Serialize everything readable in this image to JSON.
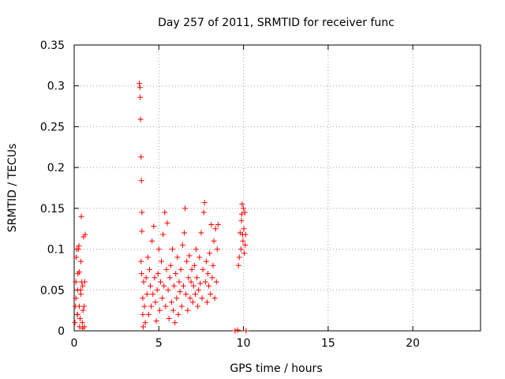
{
  "chart_data": {
    "type": "scatter",
    "title": "Day 257 of 2011, SRMTID for receiver func",
    "xlabel": "GPS time / hours",
    "ylabel": "SRMTID / TECUs",
    "xlim": [
      0,
      24
    ],
    "ylim": [
      0,
      0.35
    ],
    "xticks": [
      0,
      5,
      10,
      15,
      20
    ],
    "xtick_labels": [
      "0",
      "5",
      "10",
      "15",
      "20"
    ],
    "yticks": [
      0,
      0.05,
      0.1,
      0.15,
      0.2,
      0.25,
      0.3,
      0.35
    ],
    "ytick_labels": [
      "0",
      "0.05",
      "0.1",
      "0.15",
      "0.2",
      "0.25",
      "0.3",
      "0.35"
    ],
    "grid": true,
    "marker": "+",
    "colors": {
      "points": "#ff0000",
      "grid": "#a0a0a0",
      "axis": "#000000"
    },
    "series": [
      {
        "name": "SRMTID",
        "points": [
          [
            0.05,
            0.01
          ],
          [
            0.08,
            0.03
          ],
          [
            0.1,
            0.06
          ],
          [
            0.12,
            0.09
          ],
          [
            0.15,
            0.1
          ],
          [
            0.18,
            0.02
          ],
          [
            0.2,
            0.05
          ],
          [
            0.22,
            0.07
          ],
          [
            0.25,
            0.1
          ],
          [
            0.28,
            0.104
          ],
          [
            0.3,
            0.03
          ],
          [
            0.32,
            0.005
          ],
          [
            0.35,
            0.015
          ],
          [
            0.38,
            0.05
          ],
          [
            0.4,
            0.085
          ],
          [
            0.42,
            0.14
          ],
          [
            0.45,
            0.06
          ],
          [
            0.48,
            0.01
          ],
          [
            0.5,
            0.003
          ],
          [
            0.52,
            0.025
          ],
          [
            0.55,
            0.115
          ],
          [
            0.58,
            0.03
          ],
          [
            0.6,
            0.005
          ],
          [
            0.62,
            0.06
          ],
          [
            0.65,
            0.118
          ],
          [
            0.1,
            0.04
          ],
          [
            0.2,
            0.02
          ],
          [
            0.3,
            0.072
          ],
          [
            0.4,
            0.045
          ],
          [
            0.5,
            0.055
          ],
          [
            3.85,
            0.303
          ],
          [
            3.88,
            0.298
          ],
          [
            3.9,
            0.286
          ],
          [
            3.92,
            0.259
          ],
          [
            3.95,
            0.213
          ],
          [
            3.97,
            0.184
          ],
          [
            4.0,
            0.145
          ],
          [
            4.0,
            0.122
          ],
          [
            3.95,
            0.085
          ],
          [
            3.98,
            0.07
          ],
          [
            4.05,
            0.04
          ],
          [
            4.05,
            0.02
          ],
          [
            4.08,
            0.005
          ],
          [
            4.1,
            0.06
          ],
          [
            4.15,
            0.03
          ],
          [
            4.2,
            0.01
          ],
          [
            4.25,
            0.065
          ],
          [
            4.3,
            0.045
          ],
          [
            4.35,
            0.09
          ],
          [
            4.4,
            0.02
          ],
          [
            4.45,
            0.075
          ],
          [
            4.5,
            0.055
          ],
          [
            4.55,
            0.03
          ],
          [
            4.6,
            0.11
          ],
          [
            4.65,
            0.045
          ],
          [
            4.7,
            0.128
          ],
          [
            4.75,
            0.065
          ],
          [
            4.8,
            0.035
          ],
          [
            4.85,
            0.012
          ],
          [
            4.9,
            0.05
          ],
          [
            4.95,
            0.07
          ],
          [
            5.0,
            0.1
          ],
          [
            5.05,
            0.025
          ],
          [
            5.1,
            0.06
          ],
          [
            5.15,
            0.085
          ],
          [
            5.2,
            0.04
          ],
          [
            5.25,
            0.118
          ],
          [
            5.3,
            0.055
          ],
          [
            5.35,
            0.145
          ],
          [
            5.4,
            0.03
          ],
          [
            5.45,
            0.075
          ],
          [
            5.5,
            0.132
          ],
          [
            5.55,
            0.05
          ],
          [
            5.6,
            0.015
          ],
          [
            5.65,
            0.065
          ],
          [
            5.7,
            0.08
          ],
          [
            5.75,
            0.035
          ],
          [
            5.8,
            0.1
          ],
          [
            5.85,
            0.025
          ],
          [
            5.9,
            0.055
          ],
          [
            5.95,
            0.01
          ],
          [
            6.0,
            0.07
          ],
          [
            6.05,
            0.04
          ],
          [
            6.1,
            0.09
          ],
          [
            6.15,
            0.02
          ],
          [
            6.2,
            0.06
          ],
          [
            6.25,
            0.048
          ],
          [
            6.3,
            0.075
          ],
          [
            6.35,
            0.03
          ],
          [
            6.4,
            0.105
          ],
          [
            6.45,
            0.055
          ],
          [
            6.5,
            0.12
          ],
          [
            6.55,
            0.15
          ],
          [
            6.6,
            0.045
          ],
          [
            6.65,
            0.085
          ],
          [
            6.7,
            0.025
          ],
          [
            6.75,
            0.065
          ],
          [
            6.8,
            0.092
          ],
          [
            6.85,
            0.04
          ],
          [
            6.9,
            0.06
          ],
          [
            6.95,
            0.075
          ],
          [
            7.0,
            0.035
          ],
          [
            7.05,
            0.055
          ],
          [
            7.1,
            0.08
          ],
          [
            7.15,
            0.045
          ],
          [
            7.2,
            0.1
          ],
          [
            7.25,
            0.065
          ],
          [
            7.3,
            0.03
          ],
          [
            7.35,
            0.05
          ],
          [
            7.4,
            0.09
          ],
          [
            7.45,
            0.058
          ],
          [
            7.5,
            0.12
          ],
          [
            7.55,
            0.04
          ],
          [
            7.6,
            0.075
          ],
          [
            7.65,
            0.145
          ],
          [
            7.7,
            0.157
          ],
          [
            7.75,
            0.06
          ],
          [
            7.8,
            0.085
          ],
          [
            7.85,
            0.035
          ],
          [
            7.9,
            0.07
          ],
          [
            7.95,
            0.055
          ],
          [
            8.0,
            0.095
          ],
          [
            8.05,
            0.045
          ],
          [
            8.1,
            0.13
          ],
          [
            8.15,
            0.065
          ],
          [
            8.2,
            0.08
          ],
          [
            8.25,
            0.11
          ],
          [
            8.3,
            0.04
          ],
          [
            8.35,
            0.125
          ],
          [
            8.4,
            0.06
          ],
          [
            8.45,
            0.1
          ],
          [
            8.5,
            0.13
          ],
          [
            9.5,
            0.0
          ],
          [
            9.65,
            0.001
          ],
          [
            9.7,
            0.08
          ],
          [
            9.75,
            0.09
          ],
          [
            9.8,
            0.12
          ],
          [
            9.85,
            0.1
          ],
          [
            9.88,
            0.135
          ],
          [
            9.9,
            0.143
          ],
          [
            9.92,
            0.155
          ],
          [
            9.95,
            0.118
          ],
          [
            9.97,
            0.11
          ],
          [
            10.0,
            0.15
          ],
          [
            10.02,
            0.125
          ],
          [
            10.05,
            0.095
          ],
          [
            10.08,
            0.145
          ],
          [
            10.1,
            0.105
          ],
          [
            10.12,
            0.118
          ],
          [
            10.15,
            0.0
          ]
        ]
      }
    ]
  }
}
